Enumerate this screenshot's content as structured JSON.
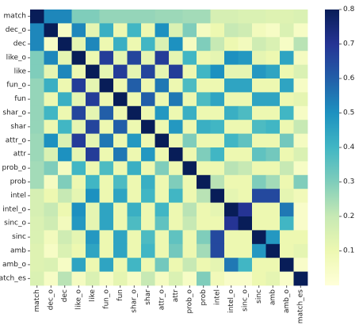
{
  "chart_data": {
    "type": "heatmap",
    "title": "",
    "xlabel": "",
    "ylabel": "",
    "labels": [
      "match",
      "dec_o",
      "dec",
      "like_o",
      "like",
      "fun_o",
      "fun",
      "shar_o",
      "shar",
      "attr_o",
      "attr",
      "prob_o",
      "prob",
      "intel",
      "intel_o",
      "sinc_o",
      "sinc",
      "amb",
      "amb_o",
      "match_es"
    ],
    "values": [
      [
        1.0,
        0.52,
        0.52,
        0.3,
        0.3,
        0.27,
        0.27,
        0.27,
        0.27,
        0.26,
        0.26,
        0.25,
        0.25,
        0.16,
        0.16,
        0.15,
        0.15,
        0.14,
        0.14,
        0.15
      ],
      [
        0.52,
        1.0,
        0.05,
        0.52,
        0.12,
        0.42,
        0.1,
        0.4,
        0.1,
        0.5,
        0.15,
        0.3,
        0.06,
        0.1,
        0.2,
        0.18,
        0.07,
        0.05,
        0.15,
        0.05
      ],
      [
        0.52,
        0.05,
        1.0,
        0.12,
        0.52,
        0.1,
        0.42,
        0.1,
        0.4,
        0.15,
        0.5,
        0.06,
        0.3,
        0.2,
        0.1,
        0.07,
        0.18,
        0.15,
        0.05,
        0.22
      ],
      [
        0.3,
        0.52,
        0.12,
        1.0,
        0.1,
        0.68,
        0.12,
        0.66,
        0.12,
        0.68,
        0.12,
        0.4,
        0.1,
        0.12,
        0.5,
        0.48,
        0.12,
        0.1,
        0.45,
        0.06
      ],
      [
        0.3,
        0.12,
        0.52,
        0.1,
        1.0,
        0.12,
        0.68,
        0.12,
        0.66,
        0.12,
        0.68,
        0.1,
        0.4,
        0.5,
        0.12,
        0.12,
        0.48,
        0.45,
        0.1,
        0.15
      ],
      [
        0.27,
        0.42,
        0.1,
        0.68,
        0.12,
        1.0,
        0.1,
        0.6,
        0.1,
        0.55,
        0.1,
        0.38,
        0.1,
        0.1,
        0.45,
        0.45,
        0.1,
        0.1,
        0.45,
        0.05
      ],
      [
        0.27,
        0.1,
        0.42,
        0.12,
        0.68,
        0.1,
        1.0,
        0.1,
        0.6,
        0.1,
        0.55,
        0.1,
        0.38,
        0.45,
        0.1,
        0.1,
        0.45,
        0.45,
        0.1,
        0.12
      ],
      [
        0.27,
        0.4,
        0.1,
        0.66,
        0.12,
        0.6,
        0.1,
        1.0,
        0.1,
        0.48,
        0.1,
        0.42,
        0.1,
        0.1,
        0.42,
        0.38,
        0.1,
        0.1,
        0.4,
        0.05
      ],
      [
        0.27,
        0.1,
        0.4,
        0.12,
        0.66,
        0.1,
        0.6,
        0.1,
        1.0,
        0.1,
        0.48,
        0.1,
        0.42,
        0.4,
        0.1,
        0.1,
        0.38,
        0.4,
        0.1,
        0.2
      ],
      [
        0.26,
        0.5,
        0.15,
        0.68,
        0.12,
        0.55,
        0.1,
        0.48,
        0.1,
        1.0,
        0.1,
        0.3,
        0.1,
        0.1,
        0.4,
        0.35,
        0.1,
        0.1,
        0.32,
        0.06
      ],
      [
        0.26,
        0.15,
        0.5,
        0.12,
        0.68,
        0.1,
        0.55,
        0.1,
        0.48,
        0.1,
        1.0,
        0.1,
        0.3,
        0.4,
        0.1,
        0.1,
        0.35,
        0.32,
        0.1,
        0.15
      ],
      [
        0.25,
        0.3,
        0.06,
        0.4,
        0.1,
        0.38,
        0.1,
        0.42,
        0.1,
        0.3,
        0.1,
        1.0,
        0.1,
        0.1,
        0.22,
        0.2,
        0.1,
        0.1,
        0.2,
        0.05
      ],
      [
        0.25,
        0.06,
        0.3,
        0.1,
        0.4,
        0.1,
        0.38,
        0.1,
        0.42,
        0.1,
        0.3,
        0.1,
        1.0,
        0.22,
        0.1,
        0.1,
        0.3,
        0.25,
        0.1,
        0.3
      ],
      [
        0.16,
        0.1,
        0.2,
        0.12,
        0.5,
        0.1,
        0.45,
        0.1,
        0.4,
        0.1,
        0.4,
        0.1,
        0.22,
        1.0,
        0.12,
        0.1,
        0.65,
        0.65,
        0.12,
        0.08
      ],
      [
        0.16,
        0.2,
        0.1,
        0.5,
        0.12,
        0.45,
        0.1,
        0.42,
        0.1,
        0.4,
        0.1,
        0.22,
        0.1,
        0.12,
        1.0,
        0.7,
        0.1,
        0.1,
        0.55,
        0.04
      ],
      [
        0.15,
        0.18,
        0.07,
        0.48,
        0.12,
        0.45,
        0.1,
        0.38,
        0.1,
        0.35,
        0.1,
        0.2,
        0.1,
        0.1,
        0.7,
        1.0,
        0.1,
        0.1,
        0.4,
        0.04
      ],
      [
        0.15,
        0.07,
        0.18,
        0.12,
        0.48,
        0.1,
        0.45,
        0.1,
        0.38,
        0.1,
        0.35,
        0.1,
        0.3,
        0.65,
        0.1,
        0.1,
        1.0,
        0.48,
        0.1,
        0.1
      ],
      [
        0.14,
        0.05,
        0.15,
        0.1,
        0.45,
        0.1,
        0.45,
        0.1,
        0.4,
        0.1,
        0.32,
        0.1,
        0.25,
        0.65,
        0.1,
        0.1,
        0.48,
        1.0,
        0.1,
        0.12
      ],
      [
        0.14,
        0.15,
        0.05,
        0.45,
        0.1,
        0.45,
        0.1,
        0.4,
        0.1,
        0.32,
        0.1,
        0.2,
        0.1,
        0.12,
        0.55,
        0.4,
        0.1,
        0.1,
        1.0,
        0.04
      ],
      [
        0.15,
        0.05,
        0.22,
        0.06,
        0.15,
        0.05,
        0.12,
        0.05,
        0.2,
        0.06,
        0.15,
        0.05,
        0.3,
        0.08,
        0.04,
        0.04,
        0.1,
        0.12,
        0.04,
        1.0
      ]
    ],
    "colorbar": {
      "min": 0.0,
      "max": 0.8,
      "ticks": [
        "0.1",
        "0.2",
        "0.3",
        "0.4",
        "0.5",
        "0.6",
        "0.7",
        "0.8"
      ],
      "colormap": "YlGnBu",
      "stops": [
        "#ffffd9",
        "#edf8b1",
        "#c7e9b4",
        "#7fcdbb",
        "#41b6c4",
        "#1d91c0",
        "#225ea8",
        "#253494",
        "#081d58"
      ]
    },
    "legend": "right",
    "grid": false
  }
}
